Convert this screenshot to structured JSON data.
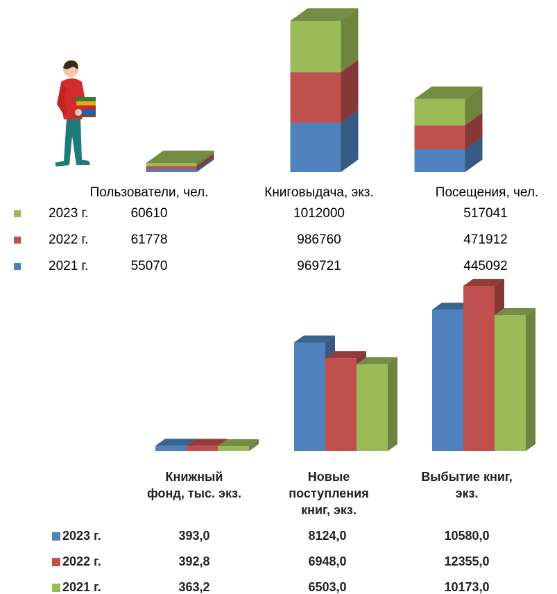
{
  "chart_data": [
    {
      "type": "bar",
      "stacked": true,
      "categories": [
        "Пользователи, чел.",
        "Книговыдача, экз.",
        "Посещения, чел."
      ],
      "series": [
        {
          "name": "2021 г.",
          "color": "#4f81bd",
          "values": [
            55070,
            969721,
            445092
          ]
        },
        {
          "name": "2022 г.",
          "color": "#c0504d",
          "values": [
            61778,
            986760,
            471912
          ]
        },
        {
          "name": "2023 г.",
          "color": "#9bbb59",
          "values": [
            60610,
            1012000,
            517041
          ]
        }
      ]
    },
    {
      "type": "bar",
      "stacked": false,
      "categories": [
        [
          "Книжный",
          "фонд, тыс. экз."
        ],
        [
          "Новые",
          "поступления",
          "книг, экз."
        ],
        [
          "Выбытие книг,",
          "экз."
        ]
      ],
      "series": [
        {
          "name": "2023 г.",
          "color": "#4f81bd",
          "values": [
            393.0,
            8124.0,
            10580.0
          ],
          "value_labels": [
            "393,0",
            "8124,0",
            "10580,0"
          ]
        },
        {
          "name": "2022 г.",
          "color": "#c0504d",
          "values": [
            392.8,
            6948.0,
            12355.0
          ],
          "value_labels": [
            "392,8",
            "6948,0",
            "12355,0"
          ]
        },
        {
          "name": "2021 г.",
          "color": "#9bbb59",
          "values": [
            363.2,
            6503.0,
            10173.0
          ],
          "value_labels": [
            "363,2",
            "6503,0",
            "10173,0"
          ]
        }
      ]
    }
  ]
}
